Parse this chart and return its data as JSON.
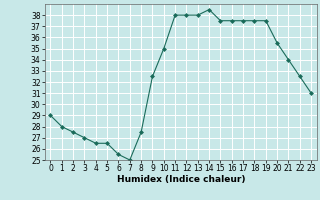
{
  "x": [
    0,
    1,
    2,
    3,
    4,
    5,
    6,
    7,
    8,
    9,
    10,
    11,
    12,
    13,
    14,
    15,
    16,
    17,
    18,
    19,
    20,
    21,
    22,
    23
  ],
  "y": [
    29,
    28,
    27.5,
    27,
    26.5,
    26.5,
    25.5,
    25,
    27.5,
    32.5,
    35,
    38,
    38,
    38,
    38.5,
    37.5,
    37.5,
    37.5,
    37.5,
    37.5,
    35.5,
    34,
    32.5,
    31
  ],
  "line_color": "#1a6b5a",
  "marker": "D",
  "marker_size": 2.0,
  "bg_color": "#c8e8e8",
  "grid_color": "#ffffff",
  "xlabel": "Humidex (Indice chaleur)",
  "xlim": [
    -0.5,
    23.5
  ],
  "ylim": [
    25,
    39
  ],
  "yticks": [
    25,
    26,
    27,
    28,
    29,
    30,
    31,
    32,
    33,
    34,
    35,
    36,
    37,
    38
  ],
  "xticks": [
    0,
    1,
    2,
    3,
    4,
    5,
    6,
    7,
    8,
    9,
    10,
    11,
    12,
    13,
    14,
    15,
    16,
    17,
    18,
    19,
    20,
    21,
    22,
    23
  ],
  "label_fontsize": 6.5,
  "tick_fontsize": 5.5,
  "linewidth": 0.8
}
